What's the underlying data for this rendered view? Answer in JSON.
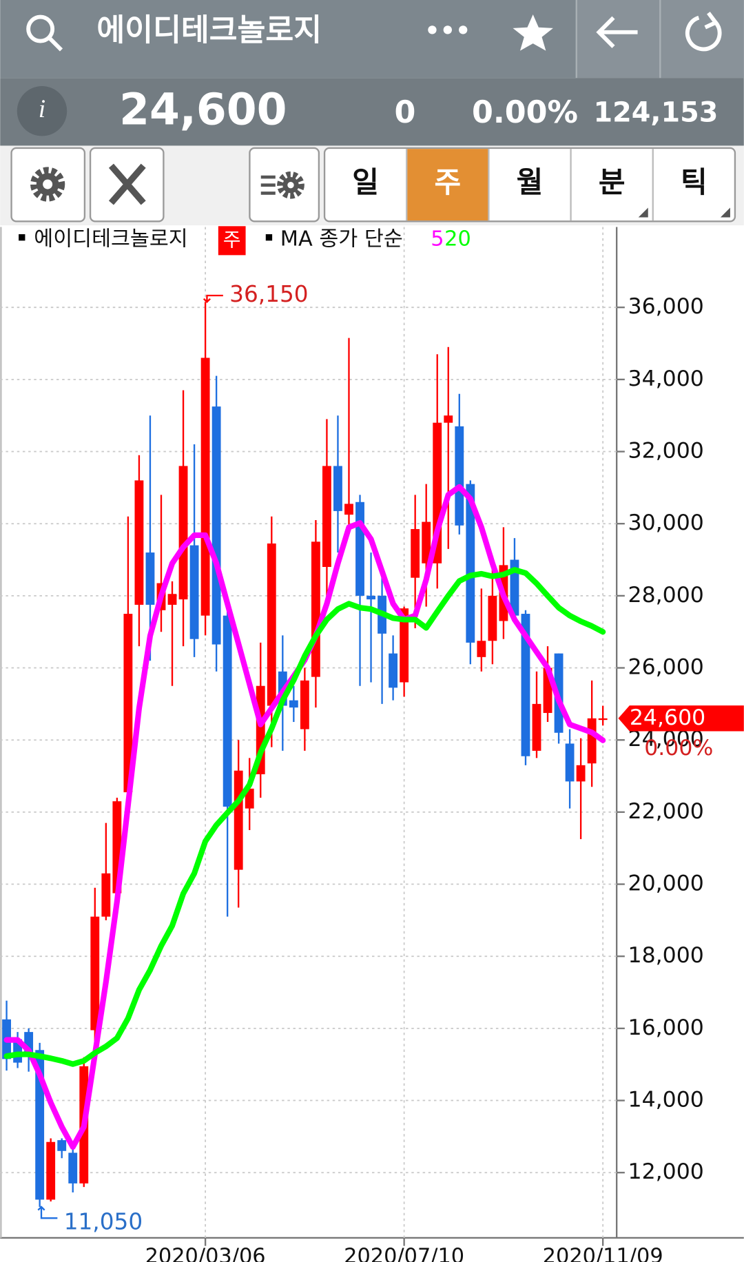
{
  "header": {
    "title": "에이디테크놀로지",
    "more": "•••"
  },
  "quote": {
    "info": "i",
    "price": "24,600",
    "change": "0",
    "change_pct": "0.00%",
    "volume": "124,153"
  },
  "tabs": [
    "일",
    "주",
    "월",
    "분",
    "틱"
  ],
  "legend": {
    "badge": "주",
    "ma_label": "MA 종가 단순"
  },
  "chart_data": {
    "type": "candlestick",
    "name": "에이디테크놀로지",
    "x": [
      null,
      null,
      null,
      null,
      null,
      null,
      null,
      null,
      null,
      null,
      null,
      null,
      null,
      null,
      null,
      null,
      null,
      null,
      "2020/03/06",
      null,
      null,
      null,
      null,
      null,
      null,
      null,
      null,
      null,
      null,
      null,
      null,
      null,
      null,
      null,
      null,
      null,
      "2020/07/10",
      null,
      null,
      null,
      null,
      null,
      null,
      null,
      null,
      null,
      null,
      null,
      null,
      null,
      null,
      null,
      null,
      null,
      "2020/11/09"
    ],
    "open": [
      16250,
      15700,
      15900,
      15400,
      11250,
      12900,
      12550,
      11700,
      15950,
      19100,
      19750,
      22550,
      27750,
      29200,
      27600,
      27750,
      27900,
      29400,
      27450,
      33250,
      27450,
      20400,
      22100,
      23050,
      24950,
      25900,
      25100,
      24300,
      25750,
      28800,
      31600,
      30250,
      30600,
      28000,
      28000,
      26400,
      25600,
      28500,
      28900,
      28900,
      32800,
      32700,
      31100,
      26300,
      26750,
      27300,
      29000,
      27500,
      23700,
      24750,
      26400,
      23900,
      22850,
      23350,
      24600
    ],
    "high": [
      16770,
      15900,
      16000,
      15600,
      12950,
      12950,
      12800,
      15200,
      19900,
      21700,
      22400,
      30200,
      31900,
      33000,
      30800,
      28400,
      33700,
      32200,
      36150,
      34100,
      27600,
      24000,
      23500,
      26700,
      30200,
      26900,
      25500,
      26000,
      30100,
      32900,
      33000,
      35150,
      30800,
      29200,
      28600,
      26900,
      27700,
      30800,
      31100,
      34700,
      34900,
      33600,
      31200,
      28200,
      29100,
      29900,
      29600,
      27600,
      25900,
      26600,
      26400,
      24300,
      24050,
      25650,
      24950
    ],
    "low": [
      14830,
      14900,
      14800,
      11050,
      11200,
      12400,
      11450,
      11600,
      15500,
      19000,
      19200,
      21800,
      26600,
      26200,
      27000,
      25500,
      26600,
      26300,
      26900,
      25900,
      19100,
      19350,
      21500,
      22400,
      23800,
      23700,
      24500,
      23700,
      24900,
      27700,
      29200,
      29800,
      25500,
      25600,
      25000,
      25100,
      25200,
      27100,
      27700,
      28200,
      29300,
      29700,
      26100,
      25900,
      26100,
      26800,
      27300,
      23300,
      23500,
      24500,
      23900,
      22100,
      21250,
      22700,
      24400
    ],
    "close": [
      15150,
      15050,
      15250,
      11250,
      12850,
      12600,
      11700,
      14950,
      19100,
      20300,
      22300,
      27500,
      31200,
      27750,
      28350,
      28050,
      31600,
      26800,
      34600,
      26650,
      22150,
      23150,
      22650,
      25500,
      29450,
      24950,
      24900,
      25650,
      29500,
      31600,
      30350,
      30550,
      28000,
      27900,
      26950,
      25450,
      27650,
      29850,
      30050,
      32800,
      33000,
      29950,
      26700,
      26750,
      28000,
      28850,
      27450,
      23550,
      25000,
      26000,
      24200,
      22850,
      23300,
      24600,
      24600
    ],
    "up_color": "#ff0000",
    "down_color": "#1e6fe0",
    "series": [
      {
        "name": "5",
        "color": "#ff00ff",
        "values": [
          15680,
          15680,
          15390,
          14720,
          13940,
          13270,
          12710,
          13270,
          15280,
          17290,
          19520,
          22200,
          24880,
          26890,
          28000,
          28900,
          29350,
          29680,
          29680,
          28900,
          27780,
          26670,
          25550,
          24430,
          24880,
          25330,
          25770,
          26220,
          26890,
          27780,
          28900,
          29900,
          30020,
          29570,
          28680,
          27780,
          27340,
          27450,
          28450,
          29800,
          30800,
          31020,
          30690,
          29900,
          28900,
          28000,
          27340,
          26890,
          26440,
          26000,
          25100,
          24430,
          24320,
          24210,
          23990
        ]
      },
      {
        "name": "20",
        "color": "#00ff00",
        "values": [
          15230,
          15280,
          15280,
          15230,
          15170,
          15100,
          15010,
          15100,
          15320,
          15500,
          15730,
          16280,
          17070,
          17620,
          18290,
          18850,
          19740,
          20300,
          21190,
          21640,
          21980,
          22310,
          22760,
          23650,
          24320,
          25100,
          25660,
          26330,
          26890,
          27340,
          27630,
          27780,
          27670,
          27630,
          27510,
          27380,
          27340,
          27340,
          27110,
          27560,
          28000,
          28410,
          28560,
          28610,
          28540,
          28590,
          28720,
          28630,
          28340,
          28000,
          27670,
          27450,
          27290,
          27160,
          27000
        ]
      }
    ],
    "ylim": [
      10190,
      38230
    ],
    "yticks": [
      {
        "value": 12000,
        "label": "12,000"
      },
      {
        "value": 14000,
        "label": "14,000"
      },
      {
        "value": 16000,
        "label": "16,000"
      },
      {
        "value": 18000,
        "label": "18,000"
      },
      {
        "value": 20000,
        "label": "20,000"
      },
      {
        "value": 22000,
        "label": "22,000"
      },
      {
        "value": 24000,
        "label": "24,000"
      },
      {
        "value": 26000,
        "label": "26,000"
      },
      {
        "value": 28000,
        "label": "28,000"
      },
      {
        "value": 30000,
        "label": "30,000"
      },
      {
        "value": 32000,
        "label": "32,000"
      },
      {
        "value": 34000,
        "label": "34,000"
      },
      {
        "value": 36000,
        "label": "36,000"
      }
    ],
    "grid": true,
    "max_label": {
      "value": 36150,
      "label": "36,150"
    },
    "min_label": {
      "value": 11050,
      "label": "11,050"
    },
    "last_label": {
      "value": 24600,
      "label": "24,600"
    },
    "last_change": "0.00%"
  }
}
